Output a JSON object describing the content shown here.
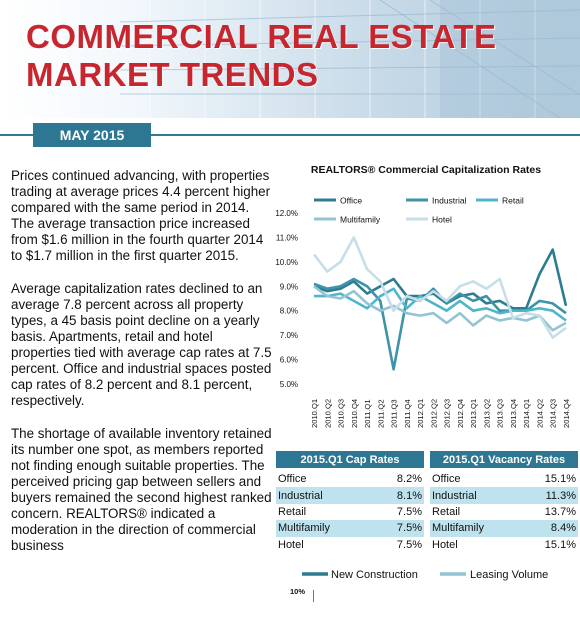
{
  "header": {
    "title_line1": "COMMERCIAL REAL ESTATE",
    "title_line2": "MARKET TRENDS",
    "date": "MAY 2015"
  },
  "body": {
    "paragraph1": "Prices continued advancing, with properties trading at average prices 4.4 percent higher compared with the same period in 2014.  The average transaction price increased from $1.6 million in the fourth quarter 2014 to $1.7 million in the first quarter 2015.",
    "paragraph2": "Average capitalization rates declined to an average 7.8 percent across all property types, a 45 basis point decline on a yearly basis. Apartments, retail and hotel properties tied with average cap rates at 7.5 percent.  Office and industrial spaces posted cap rates of 8.2 percent and 8.1 percent, respectively.",
    "paragraph3": "The shortage of available inventory retained its number one spot, as members reported not finding enough suitable properties.  The perceived pricing gap between sellers and buyers remained the second highest ranked concern.  REALTORS® indicated a moderation in the direction of commercial business"
  },
  "chart_data": [
    {
      "type": "line",
      "title": "REALTORS® Commercial Capitalization Rates",
      "x": [
        "2010.Q1",
        "2010.Q2",
        "2010.Q3",
        "2010.Q4",
        "2011.Q1",
        "2011.Q2",
        "2011.Q3",
        "2011.Q4",
        "2012.Q1",
        "2012.Q2",
        "2012.Q3",
        "2012.Q4",
        "2013.Q1",
        "2013.Q2",
        "2013.Q3",
        "2013.Q4",
        "2014.Q1",
        "2014.Q2",
        "2014.Q3",
        "2014.Q4"
      ],
      "ylim": [
        5.0,
        12.0
      ],
      "y_ticks": [
        "12.0%",
        "11.0%",
        "10.0%",
        "9.0%",
        "8.0%",
        "7.0%",
        "6.0%",
        "5.0%"
      ],
      "grid": false,
      "legend_position": "top",
      "series": [
        {
          "name": "Office",
          "color": "#2d7d92",
          "values": [
            9.0,
            8.8,
            8.9,
            9.2,
            8.7,
            9.0,
            9.3,
            8.6,
            8.6,
            8.7,
            8.3,
            8.6,
            8.7,
            8.3,
            8.4,
            8.1,
            8.1,
            9.5,
            10.5,
            8.2
          ]
        },
        {
          "name": "Industrial",
          "color": "#3d93a7",
          "values": [
            9.1,
            8.9,
            9.0,
            9.3,
            9.0,
            8.4,
            5.6,
            8.5,
            8.4,
            8.9,
            8.3,
            8.7,
            8.4,
            8.6,
            8.0,
            8.0,
            8.0,
            8.4,
            8.3,
            7.9
          ]
        },
        {
          "name": "Retail",
          "color": "#4fb5c9",
          "values": [
            8.6,
            8.6,
            8.7,
            8.4,
            8.1,
            8.6,
            8.9,
            8.1,
            8.6,
            8.3,
            8.0,
            8.4,
            8.0,
            8.1,
            7.9,
            8.0,
            8.0,
            8.1,
            8.0,
            7.6
          ]
        },
        {
          "name": "Multifamily",
          "color": "#92c4d4",
          "values": [
            9.0,
            8.6,
            8.5,
            8.8,
            8.3,
            8.0,
            8.2,
            7.9,
            7.8,
            7.9,
            7.5,
            7.9,
            7.4,
            7.8,
            7.6,
            7.7,
            7.6,
            7.8,
            7.2,
            7.5
          ]
        },
        {
          "name": "Hotel",
          "color": "#c5dee8",
          "values": [
            10.3,
            9.6,
            10.0,
            11.0,
            9.7,
            9.2,
            8.0,
            8.6,
            8.4,
            8.8,
            8.4,
            9.0,
            9.2,
            8.9,
            9.3,
            7.7,
            7.9,
            7.8,
            6.9,
            7.3
          ]
        }
      ]
    },
    {
      "type": "table",
      "title": "2015.Q1 Cap Rates",
      "rows": [
        {
          "label": "Office",
          "value": "8.2%"
        },
        {
          "label": "Industrial",
          "value": "8.1%"
        },
        {
          "label": "Retail",
          "value": "7.5%"
        },
        {
          "label": "Multifamily",
          "value": "7.5%"
        },
        {
          "label": "Hotel",
          "value": "7.5%"
        }
      ]
    },
    {
      "type": "table",
      "title": "2015.Q1 Vacancy Rates",
      "rows": [
        {
          "label": "Office",
          "value": "15.1%"
        },
        {
          "label": "Industrial",
          "value": "11.3%"
        },
        {
          "label": "Retail",
          "value": "13.7%"
        },
        {
          "label": "Multifamily",
          "value": "8.4%"
        },
        {
          "label": "Hotel",
          "value": "15.1%"
        }
      ]
    },
    {
      "type": "line",
      "legend": [
        "New Construction",
        "Leasing Volume"
      ],
      "legend_colors": [
        "#2d7d92",
        "#92c4d4"
      ],
      "y_ticks": [
        "10%"
      ]
    }
  ],
  "legend2": {
    "item1": "New Construction",
    "item2": "Leasing Volume"
  },
  "bottom_chart": {
    "tick": "10%"
  }
}
